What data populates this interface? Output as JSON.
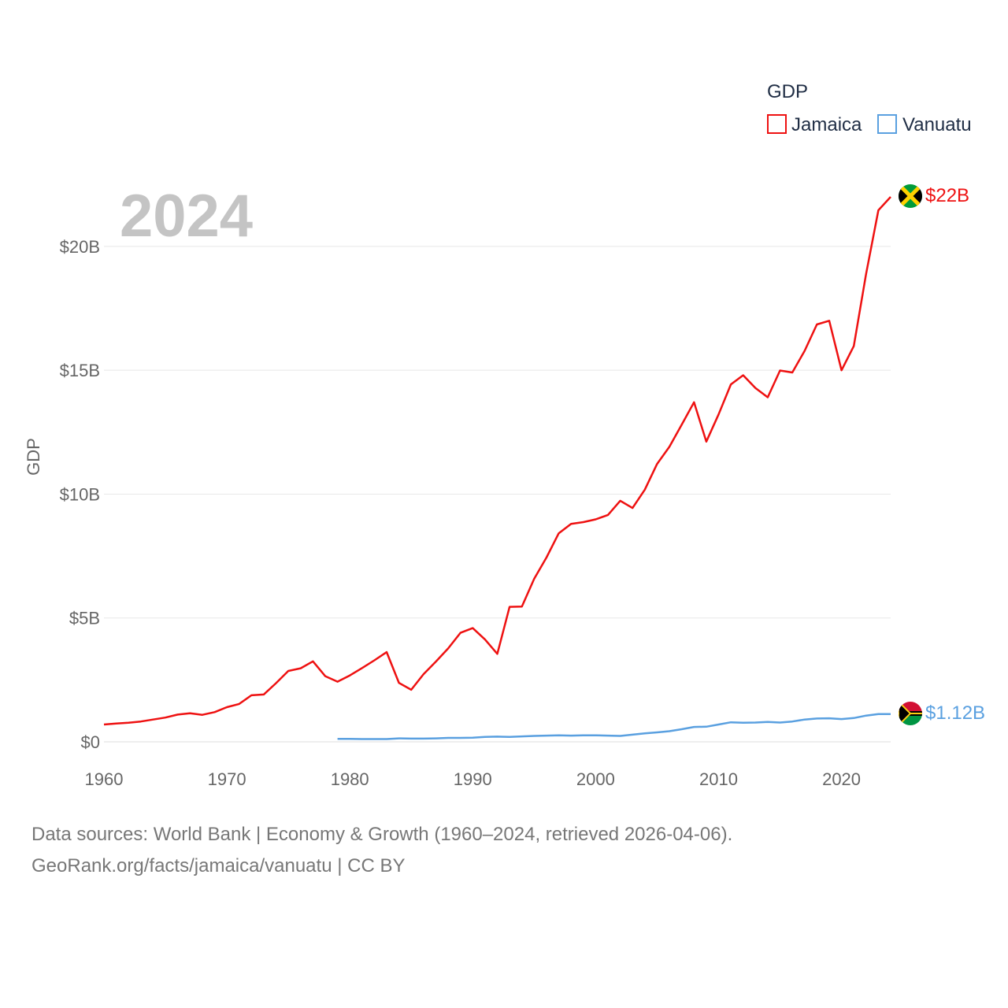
{
  "chart_data": {
    "type": "line",
    "year_label": "2024",
    "ylabel": "GDP",
    "legend_title": "GDP",
    "xlim": [
      1960,
      2024
    ],
    "ylim": [
      0,
      22000000000
    ],
    "x_ticks": [
      {
        "value": 1960,
        "label": "1960"
      },
      {
        "value": 1970,
        "label": "1970"
      },
      {
        "value": 1980,
        "label": "1980"
      },
      {
        "value": 1990,
        "label": "1990"
      },
      {
        "value": 2000,
        "label": "2000"
      },
      {
        "value": 2010,
        "label": "2010"
      },
      {
        "value": 2020,
        "label": "2020"
      }
    ],
    "y_ticks": [
      {
        "value": 0,
        "label": "$0"
      },
      {
        "value": 5000000000,
        "label": "$5B"
      },
      {
        "value": 10000000000,
        "label": "$10B"
      },
      {
        "value": 15000000000,
        "label": "$15B"
      },
      {
        "value": 20000000000,
        "label": "$20B"
      }
    ],
    "grid": true,
    "legend_position": "top-right",
    "series": [
      {
        "name": "Jamaica",
        "color": "#ee1111",
        "end_label": "$22B",
        "x": [
          1960,
          1961,
          1962,
          1963,
          1964,
          1965,
          1966,
          1967,
          1968,
          1969,
          1970,
          1971,
          1972,
          1973,
          1974,
          1975,
          1976,
          1977,
          1978,
          1979,
          1980,
          1981,
          1982,
          1983,
          1984,
          1985,
          1986,
          1987,
          1988,
          1989,
          1990,
          1991,
          1992,
          1993,
          1994,
          1995,
          1996,
          1997,
          1998,
          1999,
          2000,
          2001,
          2002,
          2003,
          2004,
          2005,
          2006,
          2007,
          2008,
          2009,
          2010,
          2011,
          2012,
          2013,
          2014,
          2015,
          2016,
          2017,
          2018,
          2019,
          2020,
          2021,
          2022,
          2023,
          2024
        ],
        "values": [
          0.7,
          0.74,
          0.77,
          0.82,
          0.9,
          0.98,
          1.1,
          1.15,
          1.09,
          1.2,
          1.4,
          1.53,
          1.88,
          1.91,
          2.37,
          2.86,
          2.97,
          3.25,
          2.65,
          2.43,
          2.68,
          2.98,
          3.29,
          3.62,
          2.38,
          2.1,
          2.73,
          3.24,
          3.77,
          4.4,
          4.59,
          4.13,
          3.55,
          5.45,
          5.46,
          6.58,
          7.44,
          8.42,
          8.8,
          8.87,
          8.98,
          9.16,
          9.73,
          9.44,
          10.18,
          11.22,
          11.91,
          12.8,
          13.71,
          12.12,
          13.22,
          14.43,
          14.8,
          14.28,
          13.91,
          14.99,
          14.91,
          15.78,
          16.85,
          17.0,
          15.0,
          15.98,
          18.89,
          21.46,
          22.0
        ],
        "unit": "billion USD"
      },
      {
        "name": "Vanuatu",
        "color": "#5aa0e0",
        "end_label": "$1.12B",
        "x": [
          1979,
          1980,
          1981,
          1982,
          1983,
          1984,
          1985,
          1986,
          1987,
          1988,
          1989,
          1990,
          1991,
          1992,
          1993,
          1994,
          1995,
          1996,
          1997,
          1998,
          1999,
          2000,
          2001,
          2002,
          2003,
          2004,
          2005,
          2006,
          2007,
          2008,
          2009,
          2010,
          2011,
          2012,
          2013,
          2014,
          2015,
          2016,
          2017,
          2018,
          2019,
          2020,
          2021,
          2022,
          2023,
          2024
        ],
        "values": [
          0.12,
          0.12,
          0.11,
          0.11,
          0.11,
          0.14,
          0.13,
          0.13,
          0.14,
          0.16,
          0.16,
          0.17,
          0.2,
          0.21,
          0.2,
          0.22,
          0.24,
          0.25,
          0.26,
          0.25,
          0.26,
          0.26,
          0.25,
          0.24,
          0.29,
          0.34,
          0.38,
          0.43,
          0.51,
          0.6,
          0.61,
          0.7,
          0.79,
          0.77,
          0.78,
          0.8,
          0.78,
          0.82,
          0.9,
          0.94,
          0.95,
          0.92,
          0.96,
          1.06,
          1.12,
          1.12
        ],
        "unit": "billion USD"
      }
    ]
  },
  "footer": {
    "line1": "Data sources: World Bank | Economy & Growth (1960–2024, retrieved 2026-04-06).",
    "line2": "GeoRank.org/facts/jamaica/vanuatu | CC BY"
  },
  "flags": {
    "jamaica_icon": "jamaica-flag-icon",
    "vanuatu_icon": "vanuatu-flag-icon"
  }
}
